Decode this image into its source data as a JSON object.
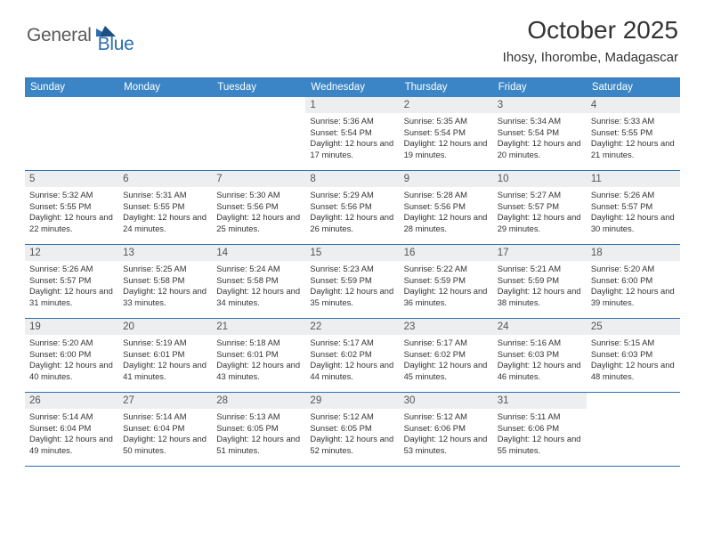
{
  "logo": {
    "text1": "General",
    "text2": "Blue"
  },
  "title": "October 2025",
  "location": "Ihosy, Ihorombe, Madagascar",
  "colors": {
    "header_bg": "#3b85c6",
    "rule": "#2b6fb0",
    "daynum_bg": "#eceeef",
    "logo_gray": "#5a5a5a",
    "logo_blue": "#2b6fb0"
  },
  "weekdays": [
    "Sunday",
    "Monday",
    "Tuesday",
    "Wednesday",
    "Thursday",
    "Friday",
    "Saturday"
  ],
  "weeks": [
    [
      {
        "n": "",
        "sr": "",
        "ss": "",
        "dl": ""
      },
      {
        "n": "",
        "sr": "",
        "ss": "",
        "dl": ""
      },
      {
        "n": "",
        "sr": "",
        "ss": "",
        "dl": ""
      },
      {
        "n": "1",
        "sr": "5:36 AM",
        "ss": "5:54 PM",
        "dl": "12 hours and 17 minutes."
      },
      {
        "n": "2",
        "sr": "5:35 AM",
        "ss": "5:54 PM",
        "dl": "12 hours and 19 minutes."
      },
      {
        "n": "3",
        "sr": "5:34 AM",
        "ss": "5:54 PM",
        "dl": "12 hours and 20 minutes."
      },
      {
        "n": "4",
        "sr": "5:33 AM",
        "ss": "5:55 PM",
        "dl": "12 hours and 21 minutes."
      }
    ],
    [
      {
        "n": "5",
        "sr": "5:32 AM",
        "ss": "5:55 PM",
        "dl": "12 hours and 22 minutes."
      },
      {
        "n": "6",
        "sr": "5:31 AM",
        "ss": "5:55 PM",
        "dl": "12 hours and 24 minutes."
      },
      {
        "n": "7",
        "sr": "5:30 AM",
        "ss": "5:56 PM",
        "dl": "12 hours and 25 minutes."
      },
      {
        "n": "8",
        "sr": "5:29 AM",
        "ss": "5:56 PM",
        "dl": "12 hours and 26 minutes."
      },
      {
        "n": "9",
        "sr": "5:28 AM",
        "ss": "5:56 PM",
        "dl": "12 hours and 28 minutes."
      },
      {
        "n": "10",
        "sr": "5:27 AM",
        "ss": "5:57 PM",
        "dl": "12 hours and 29 minutes."
      },
      {
        "n": "11",
        "sr": "5:26 AM",
        "ss": "5:57 PM",
        "dl": "12 hours and 30 minutes."
      }
    ],
    [
      {
        "n": "12",
        "sr": "5:26 AM",
        "ss": "5:57 PM",
        "dl": "12 hours and 31 minutes."
      },
      {
        "n": "13",
        "sr": "5:25 AM",
        "ss": "5:58 PM",
        "dl": "12 hours and 33 minutes."
      },
      {
        "n": "14",
        "sr": "5:24 AM",
        "ss": "5:58 PM",
        "dl": "12 hours and 34 minutes."
      },
      {
        "n": "15",
        "sr": "5:23 AM",
        "ss": "5:59 PM",
        "dl": "12 hours and 35 minutes."
      },
      {
        "n": "16",
        "sr": "5:22 AM",
        "ss": "5:59 PM",
        "dl": "12 hours and 36 minutes."
      },
      {
        "n": "17",
        "sr": "5:21 AM",
        "ss": "5:59 PM",
        "dl": "12 hours and 38 minutes."
      },
      {
        "n": "18",
        "sr": "5:20 AM",
        "ss": "6:00 PM",
        "dl": "12 hours and 39 minutes."
      }
    ],
    [
      {
        "n": "19",
        "sr": "5:20 AM",
        "ss": "6:00 PM",
        "dl": "12 hours and 40 minutes."
      },
      {
        "n": "20",
        "sr": "5:19 AM",
        "ss": "6:01 PM",
        "dl": "12 hours and 41 minutes."
      },
      {
        "n": "21",
        "sr": "5:18 AM",
        "ss": "6:01 PM",
        "dl": "12 hours and 43 minutes."
      },
      {
        "n": "22",
        "sr": "5:17 AM",
        "ss": "6:02 PM",
        "dl": "12 hours and 44 minutes."
      },
      {
        "n": "23",
        "sr": "5:17 AM",
        "ss": "6:02 PM",
        "dl": "12 hours and 45 minutes."
      },
      {
        "n": "24",
        "sr": "5:16 AM",
        "ss": "6:03 PM",
        "dl": "12 hours and 46 minutes."
      },
      {
        "n": "25",
        "sr": "5:15 AM",
        "ss": "6:03 PM",
        "dl": "12 hours and 48 minutes."
      }
    ],
    [
      {
        "n": "26",
        "sr": "5:14 AM",
        "ss": "6:04 PM",
        "dl": "12 hours and 49 minutes."
      },
      {
        "n": "27",
        "sr": "5:14 AM",
        "ss": "6:04 PM",
        "dl": "12 hours and 50 minutes."
      },
      {
        "n": "28",
        "sr": "5:13 AM",
        "ss": "6:05 PM",
        "dl": "12 hours and 51 minutes."
      },
      {
        "n": "29",
        "sr": "5:12 AM",
        "ss": "6:05 PM",
        "dl": "12 hours and 52 minutes."
      },
      {
        "n": "30",
        "sr": "5:12 AM",
        "ss": "6:06 PM",
        "dl": "12 hours and 53 minutes."
      },
      {
        "n": "31",
        "sr": "5:11 AM",
        "ss": "6:06 PM",
        "dl": "12 hours and 55 minutes."
      },
      {
        "n": "",
        "sr": "",
        "ss": "",
        "dl": ""
      }
    ]
  ],
  "labels": {
    "sunrise": "Sunrise:",
    "sunset": "Sunset:",
    "daylight": "Daylight:"
  }
}
